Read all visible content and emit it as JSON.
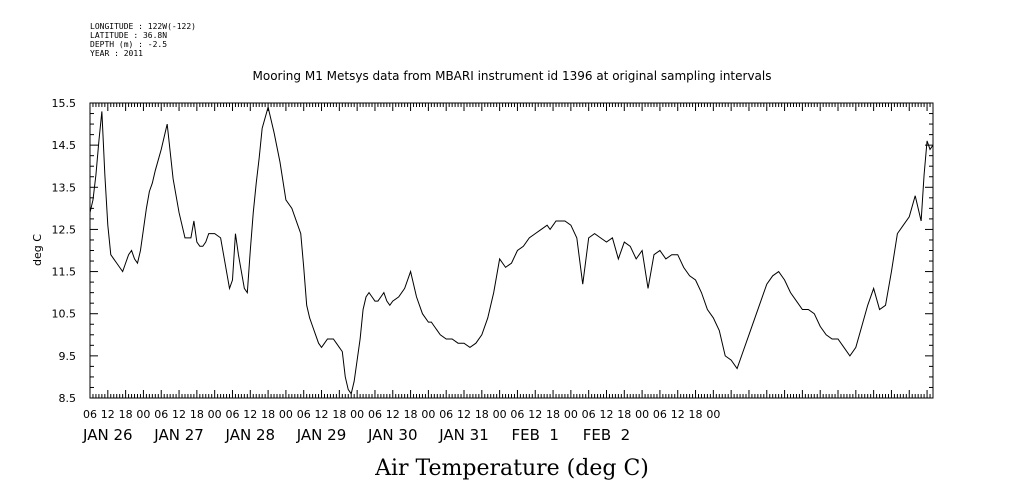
{
  "metadata": {
    "longitude": "LONGITUDE : 122W(-122)",
    "latitude": "LATITUDE : 36.8N",
    "depth": "DEPTH (m) : -2.5",
    "year": "YEAR : 2011"
  },
  "chart_data": {
    "type": "line",
    "title": "Mooring M1 Metsys data from MBARI instrument id 1396 at original sampling intervals",
    "xlabel": "Air Temperature (deg C)",
    "ylabel": "deg C",
    "ylim": [
      8.5,
      15.5
    ],
    "yticks": [
      "15.5",
      "14.5",
      "13.5",
      "12.5",
      "11.5",
      "10.5",
      "9.5",
      "8.5"
    ],
    "xlim_hours": [
      6,
      290
    ],
    "hour_ticks": [
      "06",
      "12",
      "18",
      "00",
      "06",
      "12",
      "18",
      "00",
      "06",
      "12",
      "18",
      "00",
      "06",
      "12",
      "18",
      "00",
      "06",
      "12",
      "18",
      "00",
      "06",
      "12",
      "18",
      "00",
      "06",
      "12",
      "18",
      "00",
      "06",
      "12",
      "18",
      "00",
      "06",
      "12",
      "18",
      "00"
    ],
    "day_labels": [
      "JAN 26",
      "JAN 27",
      "JAN 28",
      "JAN 29",
      "JAN 30",
      "JAN 31",
      "FEB  1",
      "FEB  2"
    ],
    "grid": false,
    "series": [
      {
        "x": [
          6,
          7,
          8,
          9,
          10,
          11,
          12,
          13,
          14,
          15,
          16,
          17,
          18,
          19,
          20,
          21,
          22,
          23,
          24,
          25,
          26,
          27,
          28,
          30,
          32,
          34,
          36,
          38,
          40,
          41,
          42,
          43,
          44,
          45,
          46,
          48,
          50,
          51,
          52,
          53,
          54,
          55,
          56,
          57,
          58,
          59,
          60,
          61,
          62,
          63,
          64,
          66,
          68,
          70,
          72,
          74,
          76,
          77,
          78,
          79,
          80,
          81,
          82,
          83,
          84,
          85,
          86,
          87,
          88,
          89,
          90,
          91,
          92,
          93,
          94,
          95,
          96,
          97,
          98,
          99,
          100,
          101,
          102,
          103,
          104,
          105,
          106,
          107,
          108,
          110,
          112,
          114,
          116,
          118,
          120,
          121,
          122,
          123,
          124,
          126,
          128,
          130,
          132,
          134,
          136,
          138,
          140,
          142,
          144,
          146,
          148,
          150,
          152,
          154,
          156,
          158,
          160,
          161,
          162,
          163,
          164,
          166,
          168,
          170,
          172,
          174,
          176,
          178,
          180,
          182,
          184,
          186,
          188,
          190,
          192,
          194,
          196,
          198,
          200,
          202,
          204,
          206,
          208,
          210,
          212,
          214,
          216,
          218,
          220,
          222,
          224,
          226,
          228,
          230,
          232,
          234,
          236,
          238,
          240,
          242,
          244,
          246,
          248,
          250,
          252,
          254,
          256,
          258,
          260,
          262,
          264,
          266,
          268,
          270,
          272,
          274,
          276,
          278,
          280,
          282,
          284,
          286,
          287,
          288,
          289,
          290
        ],
        "y": [
          12.9,
          13.2,
          13.8,
          14.6,
          15.3,
          13.8,
          12.6,
          11.9,
          11.8,
          11.7,
          11.6,
          11.5,
          11.7,
          11.9,
          12.0,
          11.8,
          11.7,
          12.0,
          12.5,
          13.0,
          13.4,
          13.6,
          13.9,
          14.4,
          15.0,
          13.7,
          12.9,
          12.3,
          12.3,
          12.7,
          12.2,
          12.1,
          12.1,
          12.2,
          12.4,
          12.4,
          12.3,
          11.9,
          11.5,
          11.1,
          11.3,
          12.4,
          11.9,
          11.5,
          11.1,
          11.0,
          12.0,
          12.9,
          13.6,
          14.2,
          14.9,
          15.4,
          14.8,
          14.1,
          13.2,
          13.0,
          12.6,
          12.4,
          11.6,
          10.7,
          10.4,
          10.2,
          10.0,
          9.8,
          9.7,
          9.8,
          9.9,
          9.9,
          9.9,
          9.8,
          9.7,
          9.6,
          9.0,
          8.7,
          8.6,
          8.9,
          9.4,
          9.9,
          10.6,
          10.9,
          11.0,
          10.9,
          10.8,
          10.8,
          10.9,
          11.0,
          10.8,
          10.7,
          10.8,
          10.9,
          11.1,
          11.5,
          10.9,
          10.5,
          10.3,
          10.3,
          10.2,
          10.1,
          10.0,
          9.9,
          9.9,
          9.8,
          9.8,
          9.7,
          9.8,
          10.0,
          10.4,
          11.0,
          11.8,
          11.6,
          11.7,
          12.0,
          12.1,
          12.3,
          12.4,
          12.5,
          12.6,
          12.5,
          12.6,
          12.7,
          12.7,
          12.7,
          12.6,
          12.3,
          11.2,
          12.3,
          12.4,
          12.3,
          12.2,
          12.3,
          11.8,
          12.2,
          12.1,
          11.8,
          12.0,
          11.1,
          11.9,
          12.0,
          11.8,
          11.9,
          11.9,
          11.6,
          11.4,
          11.3,
          11.0,
          10.6,
          10.4,
          10.1,
          9.5,
          9.4,
          9.2,
          9.6,
          10.0,
          10.4,
          10.8,
          11.2,
          11.4,
          11.5,
          11.3,
          11.0,
          10.8,
          10.6,
          10.6,
          10.5,
          10.2,
          10.0,
          9.9,
          9.9,
          9.7,
          9.5,
          9.7,
          10.2,
          10.7,
          11.1,
          10.6,
          10.7,
          11.5,
          12.4,
          12.6,
          12.8,
          13.3,
          12.7,
          13.8,
          14.6,
          14.4,
          14.5
        ]
      }
    ]
  }
}
